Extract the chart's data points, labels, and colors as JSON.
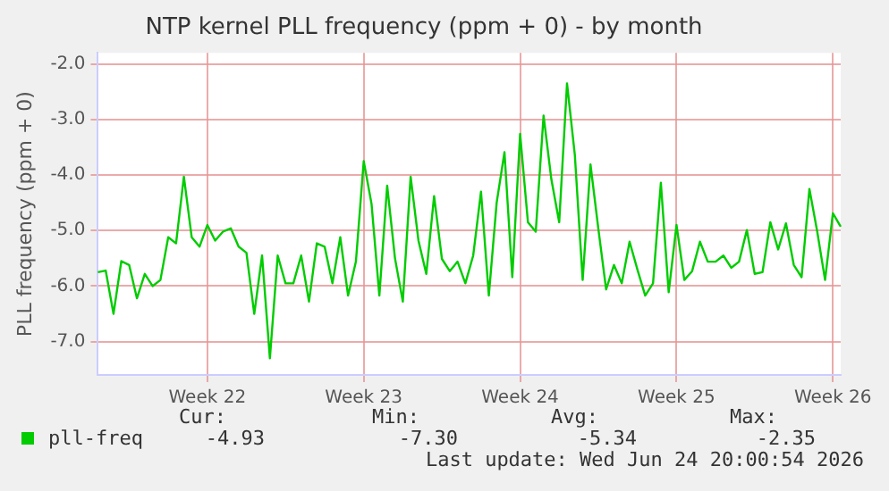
{
  "chart_data": {
    "type": "line",
    "title": "NTP kernel PLL frequency (ppm + 0) - by month",
    "ylabel": "PLL frequency (ppm + 0)",
    "categories": [
      null,
      null,
      null,
      null,
      null,
      null,
      null,
      null,
      null,
      null,
      null,
      null,
      null,
      null,
      "Week 22",
      null,
      null,
      null,
      null,
      null,
      null,
      null,
      null,
      null,
      null,
      null,
      null,
      null,
      null,
      null,
      null,
      null,
      null,
      null,
      "Week 23",
      null,
      null,
      null,
      null,
      null,
      null,
      null,
      null,
      null,
      null,
      null,
      null,
      null,
      null,
      null,
      null,
      null,
      null,
      null,
      "Week 24",
      null,
      null,
      null,
      null,
      null,
      null,
      null,
      null,
      null,
      null,
      null,
      null,
      null,
      null,
      null,
      null,
      null,
      null,
      null,
      "Week 25",
      null,
      null,
      null,
      null,
      null,
      null,
      null,
      null,
      null,
      null,
      null,
      null,
      null,
      null,
      null,
      null,
      null,
      null,
      null,
      "Week 26",
      null
    ],
    "ylim": [
      -7.6,
      -1.8
    ],
    "yticks": [
      {
        "value": -7,
        "label": "-7.0"
      },
      {
        "value": -6,
        "label": "-6.0"
      },
      {
        "value": -5,
        "label": "-5.0"
      },
      {
        "value": -4,
        "label": "-4.0"
      },
      {
        "value": -3,
        "label": "-3.0"
      },
      {
        "value": -2,
        "label": "-2.0"
      }
    ],
    "grid": true,
    "legend": "bottom left",
    "marker": "none",
    "series": [
      {
        "name": "pll-freq",
        "color": "#00cc00",
        "values": [
          -5.75,
          -5.72,
          -6.5,
          -5.55,
          -5.62,
          -6.22,
          -5.78,
          -6.0,
          -5.89,
          -5.12,
          -5.23,
          -4.03,
          -5.12,
          -5.29,
          -4.9,
          -5.18,
          -5.02,
          -4.96,
          -5.29,
          -5.4,
          -6.5,
          -5.45,
          -7.3,
          -5.45,
          -5.95,
          -5.95,
          -5.45,
          -6.28,
          -5.23,
          -5.29,
          -5.95,
          -5.12,
          -6.17,
          -5.56,
          -3.75,
          -4.52,
          -6.17,
          -4.19,
          -5.5,
          -6.28,
          -4.03,
          -5.18,
          -5.78,
          -4.38,
          -5.51,
          -5.73,
          -5.56,
          -5.95,
          -5.45,
          -4.3,
          -6.17,
          -4.5,
          -3.59,
          -5.84,
          -3.26,
          -4.85,
          -5.02,
          -2.93,
          -4.08,
          -4.85,
          -2.35,
          -3.64,
          -5.89,
          -3.81,
          -4.96,
          -6.06,
          -5.62,
          -5.95,
          -5.2,
          -5.7,
          -6.17,
          -5.95,
          -4.14,
          -6.11,
          -4.9,
          -5.89,
          -5.73,
          -5.2,
          -5.56,
          -5.56,
          -5.45,
          -5.67,
          -5.56,
          -4.99,
          -5.78,
          -5.75,
          -4.85,
          -5.34,
          -4.87,
          -5.62,
          -5.84,
          -4.25,
          -5.02,
          -5.89,
          -4.69,
          -4.93
        ]
      }
    ],
    "annotations": [
      "Cur:",
      "Min:",
      "Avg:",
      "Max:",
      "-4.93",
      "-7.30",
      "-5.34",
      "-2.35",
      "Last update: Wed Jun 24 20:00:54 2026"
    ]
  }
}
